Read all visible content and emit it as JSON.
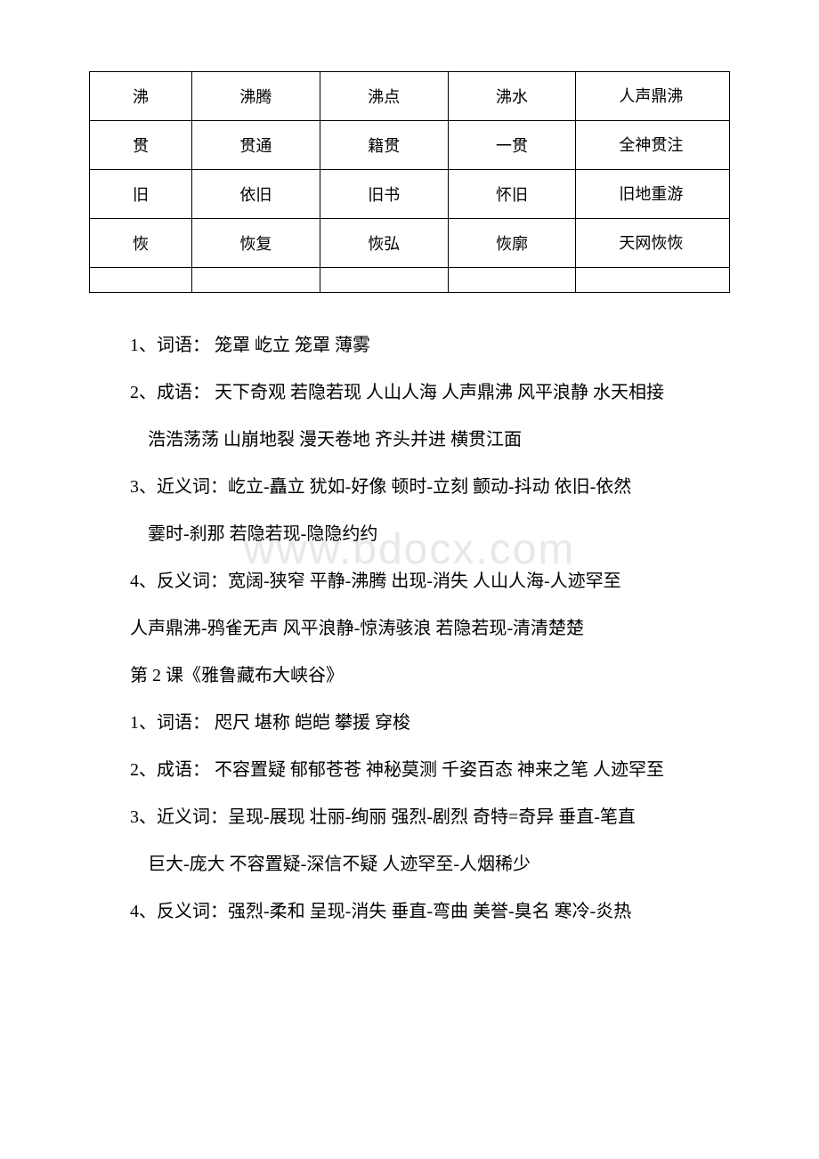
{
  "watermark": "www.bdocx.com",
  "table": {
    "rows": [
      {
        "c1": "沸",
        "c2": "沸腾",
        "c3": "沸点",
        "c4": "沸水",
        "c5": "　　人声鼎沸"
      },
      {
        "c1": "贯",
        "c2": "贯通",
        "c3": "籍贯",
        "c4": "一贯",
        "c5": "　　全神贯注"
      },
      {
        "c1": "旧",
        "c2": "依旧",
        "c3": "旧书",
        "c4": "怀旧",
        "c5": "　　旧地重游"
      },
      {
        "c1": "恢",
        "c2": "恢复",
        "c3": "恢弘",
        "c4": "恢廓",
        "c5": "　　天网恢恢"
      }
    ]
  },
  "paragraphs": [
    {
      "cls": "indent",
      "text": "1、词语：  笼罩   屹立  笼罩  薄雾"
    },
    {
      "cls": "indent",
      "text": "2、成语：  天下奇观  若隐若现  人山人海  人声鼎沸  风平浪静  水天相接"
    },
    {
      "cls": "indent2",
      "text": "浩浩荡荡  山崩地裂  漫天卷地  齐头并进  横贯江面"
    },
    {
      "cls": "indent",
      "text": "3、近义词：屹立-矗立  犹如-好像  顿时-立刻  颤动-抖动  依旧-依然"
    },
    {
      "cls": "indent2",
      "text": "霎时-刹那  若隐若现-隐隐约约"
    },
    {
      "cls": "indent",
      "text": "4、反义词：宽阔-狭窄  平静-沸腾  出现-消失  人山人海-人迹罕至"
    },
    {
      "cls": "indent",
      "text": "人声鼎沸-鸦雀无声  风平浪静-惊涛骇浪 若隐若现-清清楚楚"
    },
    {
      "cls": "indent",
      "text": "第 2 课《雅鲁藏布大峡谷》"
    },
    {
      "cls": "indent",
      "text": "1、词语：  咫尺  堪称  皑皑  攀援  穿梭"
    },
    {
      "cls": "indent",
      "text": "2、成语：  不容置疑  郁郁苍苍  神秘莫测  千姿百态  神来之笔  人迹罕至"
    },
    {
      "cls": "indent",
      "text": "3、近义词：呈现-展现  壮丽-绚丽  强烈-剧烈  奇特=奇异  垂直-笔直"
    },
    {
      "cls": "indent2",
      "text": "巨大-庞大  不容置疑-深信不疑  人迹罕至-人烟稀少"
    },
    {
      "cls": "indent",
      "text": "4、反义词：强烈-柔和  呈现-消失  垂直-弯曲  美誉-臭名  寒冷-炎热"
    }
  ]
}
